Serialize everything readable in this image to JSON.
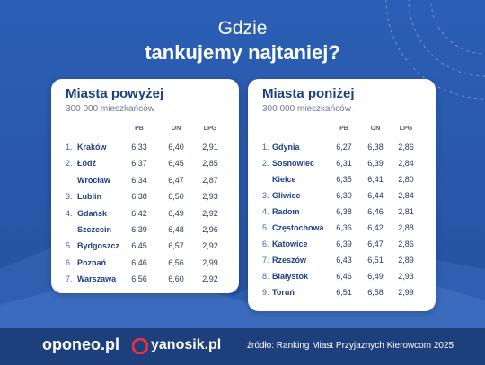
{
  "header": {
    "line1": "Gdzie",
    "line2": "tankujemy najtaniej?"
  },
  "tables": [
    {
      "title": "Miasta powyżej",
      "subtitle": "300 000 mieszkańców",
      "columns": [
        "PB",
        "ON",
        "LPG"
      ],
      "rows": [
        {
          "rank": "1.",
          "city": "Kraków",
          "values": [
            "6,33",
            "6,40",
            "2,91"
          ]
        },
        {
          "rank": "2.",
          "city": "Łódź",
          "values": [
            "6,37",
            "6,45",
            "2,85"
          ]
        },
        {
          "rank": null,
          "city": "Wrocław",
          "values": [
            "6,34",
            "6,47",
            "2,87"
          ]
        },
        {
          "rank": "3.",
          "city": "Lublin",
          "values": [
            "6,38",
            "6,50",
            "2,93"
          ]
        },
        {
          "rank": "4.",
          "city": "Gdańsk",
          "values": [
            "6,42",
            "6,49",
            "2,92"
          ]
        },
        {
          "rank": null,
          "city": "Szczecin",
          "values": [
            "6,39",
            "6,48",
            "2,96"
          ]
        },
        {
          "rank": "5.",
          "city": "Bydgoszcz",
          "values": [
            "6,45",
            "6,57",
            "2,92"
          ]
        },
        {
          "rank": "6.",
          "city": "Poznań",
          "values": [
            "6,46",
            "6,56",
            "2,99"
          ]
        },
        {
          "rank": "7.",
          "city": "Warszawa",
          "values": [
            "6,56",
            "6,60",
            "2,92"
          ]
        }
      ]
    },
    {
      "title": "Miasta poniżej",
      "subtitle": "300 000 mieszkańców",
      "columns": [
        "PB",
        "ON",
        "LPG"
      ],
      "rows": [
        {
          "rank": "1.",
          "city": "Gdynia",
          "values": [
            "6,27",
            "6,38",
            "2,86"
          ]
        },
        {
          "rank": "2.",
          "city": "Sosnowiec",
          "values": [
            "6,31",
            "6,39",
            "2,84"
          ]
        },
        {
          "rank": null,
          "city": "Kielce",
          "values": [
            "6,35",
            "6,41",
            "2,80"
          ]
        },
        {
          "rank": "3.",
          "city": "Gliwice",
          "values": [
            "6,30",
            "6,44",
            "2,84"
          ]
        },
        {
          "rank": "4.",
          "city": "Radom",
          "values": [
            "6,38",
            "6,46",
            "2,81"
          ]
        },
        {
          "rank": "5.",
          "city": "Częstochowa",
          "values": [
            "6,36",
            "6,42",
            "2,88"
          ]
        },
        {
          "rank": "6.",
          "city": "Katowice",
          "values": [
            "6,39",
            "6,47",
            "2,86"
          ]
        },
        {
          "rank": "7.",
          "city": "Rzeszów",
          "values": [
            "6,43",
            "6,51",
            "2,89"
          ]
        },
        {
          "rank": "8.",
          "city": "Białystok",
          "values": [
            "6,46",
            "6,49",
            "2,93"
          ]
        },
        {
          "rank": "9.",
          "city": "Toruń",
          "values": [
            "6,51",
            "6,58",
            "2,99"
          ]
        }
      ]
    }
  ],
  "footer": {
    "logo1": "oponeo.pl",
    "logo2": "yanosik.pl",
    "source": "źródło: Ranking Miast Przyjaznych Kierowcom 2025"
  }
}
